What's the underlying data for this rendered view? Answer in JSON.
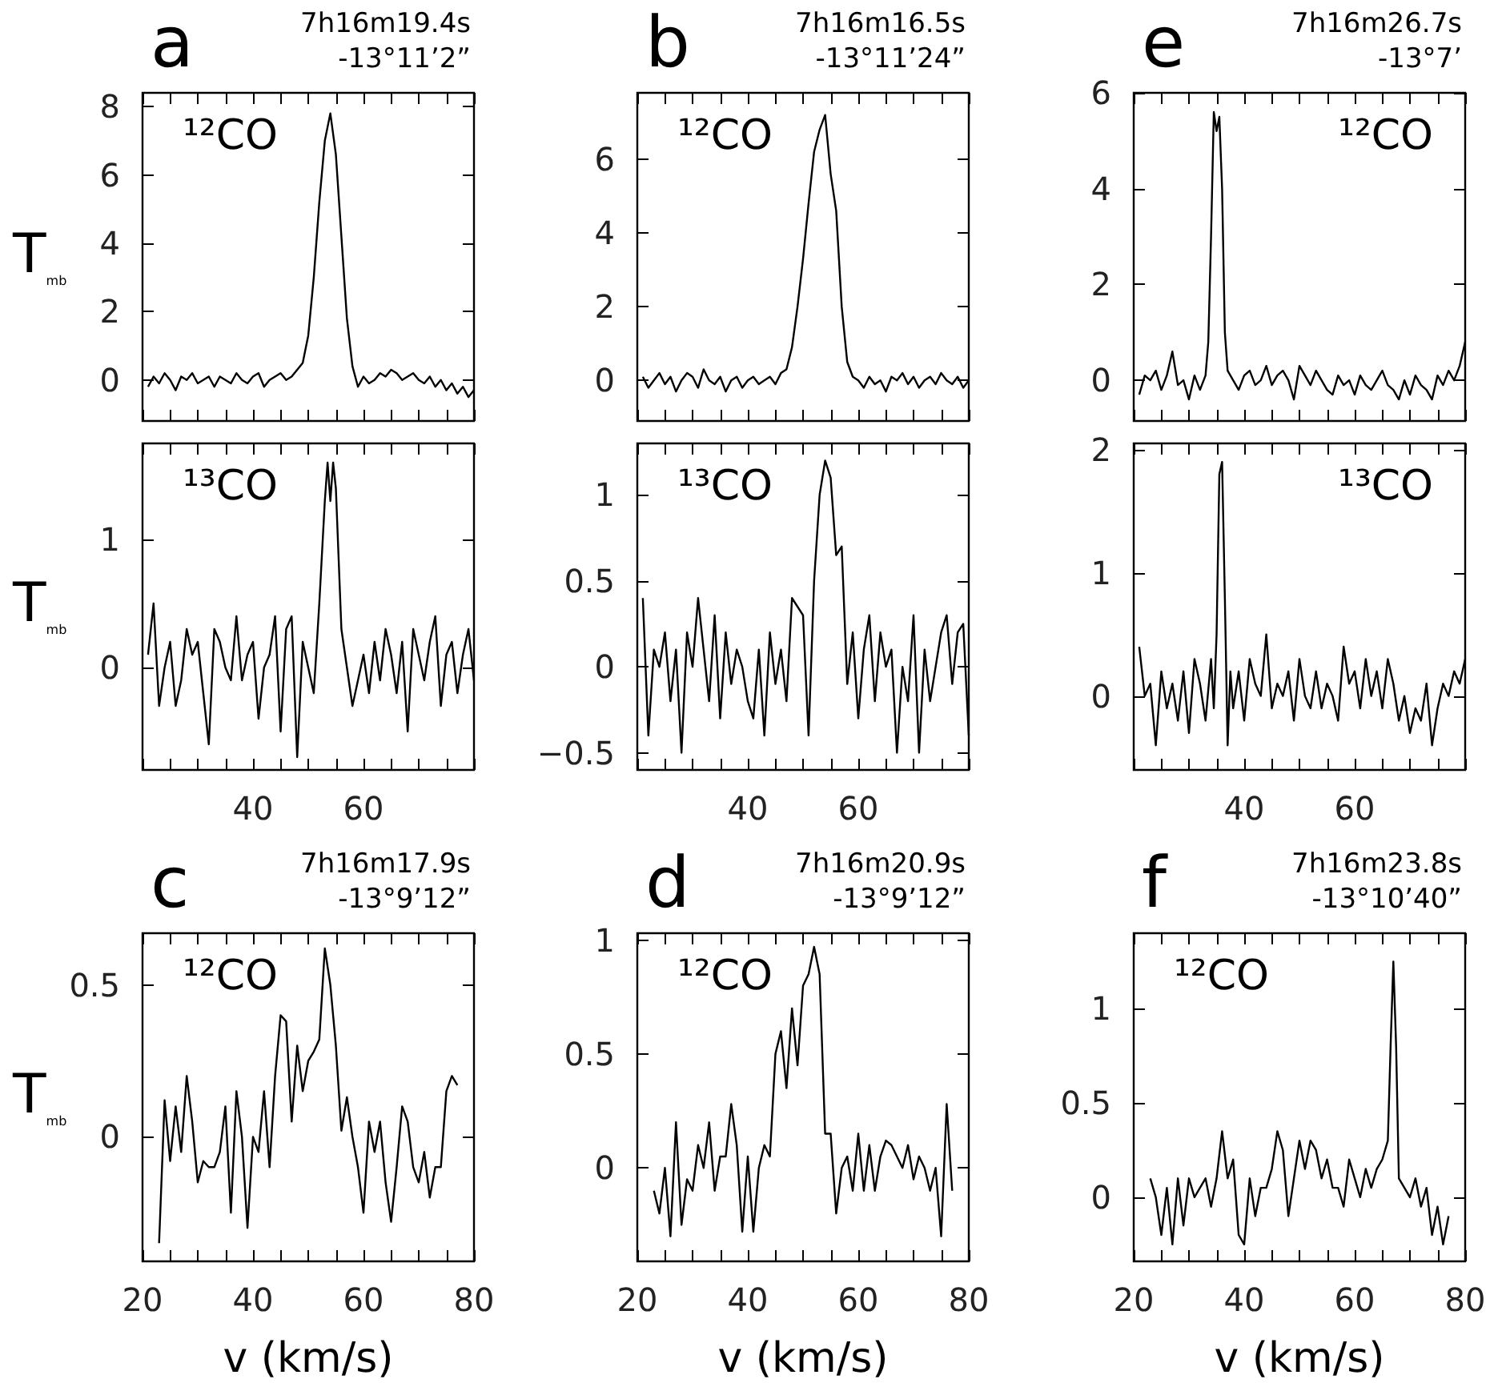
{
  "chart_data": [
    {
      "type": "line",
      "title": "a",
      "subtitle": "7h16m19.4s\n-13°11’2”",
      "ylabel": "T$_{mb}$",
      "annotations": [
        "¹²CO"
      ],
      "tick_labels": "y",
      "xlim": [
        20,
        80
      ],
      "ylim": [
        -1.2,
        8.4
      ],
      "yticks": [
        0,
        2,
        4,
        6,
        8
      ],
      "xticks": [
        {
          "value": 20,
          "label": null
        },
        {
          "value": 25,
          "label": null
        },
        {
          "value": 30,
          "label": null
        },
        {
          "value": 35,
          "label": null
        },
        {
          "value": 40,
          "label": null
        },
        {
          "value": 45,
          "label": null
        },
        {
          "value": 50,
          "label": null
        },
        {
          "value": 55,
          "label": null
        },
        {
          "value": 60,
          "label": null
        },
        {
          "value": 65,
          "label": null
        },
        {
          "value": 70,
          "label": null
        },
        {
          "value": 75,
          "label": null
        },
        {
          "value": 80,
          "label": null
        }
      ],
      "x": [
        21,
        22,
        23,
        24,
        25,
        26,
        27,
        28,
        29,
        30,
        31,
        32,
        33,
        34,
        35,
        36,
        37,
        38,
        39,
        40,
        41,
        42,
        43,
        44,
        45,
        46,
        47,
        48,
        49,
        50,
        51,
        52,
        53,
        54,
        55,
        56,
        57,
        58,
        59,
        60,
        61,
        62,
        63,
        64,
        65,
        66,
        67,
        68,
        69,
        70,
        71,
        72,
        73,
        74,
        75,
        76,
        77,
        78,
        79,
        80
      ],
      "series": [
        {
          "color": "#000000",
          "values": [
            -0.2,
            0.1,
            -0.1,
            0.2,
            0,
            -0.3,
            0.1,
            0,
            0.2,
            -0.1,
            0,
            0.1,
            -0.2,
            0.1,
            0,
            -0.1,
            0.2,
            0,
            -0.1,
            0.1,
            0.2,
            -0.2,
            0,
            0.1,
            0.2,
            0,
            0.1,
            0.3,
            0.5,
            1.3,
            3.0,
            5.2,
            7.0,
            7.8,
            6.6,
            4.2,
            1.8,
            0.4,
            -0.2,
            0.1,
            -0.1,
            0,
            0.2,
            0.1,
            0.3,
            0.2,
            0,
            0.1,
            0.2,
            0,
            -0.1,
            0.1,
            -0.2,
            0,
            -0.3,
            -0.1,
            -0.4,
            -0.2,
            -0.5,
            -0.3
          ]
        }
      ]
    },
    {
      "type": "line",
      "title": "b",
      "subtitle": "7h16m16.5s\n-13°11’24”",
      "annotations": [
        "¹²CO"
      ],
      "tick_labels": "y",
      "xlim": [
        20,
        80
      ],
      "ylim": [
        -1.1,
        7.8
      ],
      "yticks": [
        0,
        2,
        4,
        6
      ],
      "xticks": [
        {
          "value": 20,
          "label": null
        },
        {
          "value": 25,
          "label": null
        },
        {
          "value": 30,
          "label": null
        },
        {
          "value": 35,
          "label": null
        },
        {
          "value": 40,
          "label": null
        },
        {
          "value": 45,
          "label": null
        },
        {
          "value": 50,
          "label": null
        },
        {
          "value": 55,
          "label": null
        },
        {
          "value": 60,
          "label": null
        },
        {
          "value": 65,
          "label": null
        },
        {
          "value": 70,
          "label": null
        },
        {
          "value": 75,
          "label": null
        },
        {
          "value": 80,
          "label": null
        }
      ],
      "x": [
        21,
        22,
        23,
        24,
        25,
        26,
        27,
        28,
        29,
        30,
        31,
        32,
        33,
        34,
        35,
        36,
        37,
        38,
        39,
        40,
        41,
        42,
        43,
        44,
        45,
        46,
        47,
        48,
        49,
        50,
        51,
        52,
        53,
        54,
        55,
        56,
        57,
        58,
        59,
        60,
        61,
        62,
        63,
        64,
        65,
        66,
        67,
        68,
        69,
        70,
        71,
        72,
        73,
        74,
        75,
        76,
        77,
        78,
        79,
        80
      ],
      "series": [
        {
          "color": "#000000",
          "values": [
            0.1,
            -0.2,
            0,
            0.2,
            -0.1,
            0.1,
            -0.3,
            0,
            0.2,
            0.1,
            -0.2,
            0.3,
            0,
            -0.1,
            0.1,
            -0.3,
            0,
            0.1,
            -0.2,
            0,
            0.1,
            -0.1,
            0,
            0.1,
            -0.1,
            0.2,
            0.3,
            0.9,
            2.0,
            3.3,
            4.8,
            6.2,
            6.8,
            7.2,
            5.6,
            4.6,
            2.0,
            0.5,
            0.1,
            0,
            -0.2,
            0.1,
            -0.1,
            0,
            -0.3,
            0.1,
            0,
            0.2,
            -0.1,
            0.1,
            -0.2,
            0,
            0.1,
            -0.1,
            0.2,
            0,
            -0.1,
            0.1,
            -0.2,
            0
          ]
        }
      ]
    },
    {
      "type": "line",
      "title": "e",
      "subtitle": "7h16m26.7s\n-13°7’",
      "annotations": [
        "¹²CO"
      ],
      "tick_labels": "y",
      "xlim": [
        20,
        80
      ],
      "ylim": [
        -0.85,
        6
      ],
      "yticks": [
        0,
        2,
        4,
        6
      ],
      "xticks": [
        {
          "value": 20,
          "label": null
        },
        {
          "value": 25,
          "label": null
        },
        {
          "value": 30,
          "label": null
        },
        {
          "value": 35,
          "label": null
        },
        {
          "value": 40,
          "label": null
        },
        {
          "value": 45,
          "label": null
        },
        {
          "value": 50,
          "label": null
        },
        {
          "value": 55,
          "label": null
        },
        {
          "value": 60,
          "label": null
        },
        {
          "value": 65,
          "label": null
        },
        {
          "value": 70,
          "label": null
        },
        {
          "value": 75,
          "label": null
        },
        {
          "value": 80,
          "label": null
        }
      ],
      "x": [
        21,
        22,
        23,
        24,
        25,
        26,
        27,
        28,
        29,
        30,
        31,
        32,
        33,
        33.5,
        34,
        34.5,
        35,
        35.5,
        36,
        36.5,
        37,
        38,
        39,
        40,
        41,
        42,
        43,
        44,
        45,
        46,
        47,
        48,
        49,
        50,
        51,
        52,
        53,
        54,
        55,
        56,
        57,
        58,
        59,
        60,
        61,
        62,
        63,
        64,
        65,
        66,
        67,
        68,
        69,
        70,
        71,
        72,
        73,
        74,
        75,
        76,
        77,
        78,
        79,
        80
      ],
      "series": [
        {
          "color": "#000000",
          "values": [
            -0.3,
            0.1,
            0,
            0.2,
            -0.2,
            0.1,
            0.6,
            -0.1,
            0,
            -0.4,
            0.1,
            -0.2,
            0.1,
            0.8,
            3.0,
            5.6,
            5.2,
            5.5,
            4.0,
            1.0,
            0.2,
            0,
            -0.2,
            0.1,
            0.2,
            -0.1,
            0,
            0.3,
            -0.1,
            0.1,
            0.2,
            0,
            -0.4,
            0.3,
            0.1,
            -0.1,
            0.2,
            0,
            -0.2,
            -0.3,
            0.1,
            -0.1,
            0,
            -0.3,
            0.1,
            -0.1,
            -0.2,
            0,
            0.2,
            -0.1,
            -0.2,
            -0.4,
            0,
            -0.3,
            0.1,
            -0.1,
            -0.2,
            -0.4,
            0.1,
            -0.1,
            0.2,
            0,
            0.3,
            0.8
          ]
        }
      ]
    },
    {
      "type": "line",
      "ylabel": "T$_{mb}$",
      "annotations": [
        "¹³CO"
      ],
      "xlim": [
        20,
        80
      ],
      "ylim": [
        -0.8,
        1.75
      ],
      "yticks": [
        0,
        1
      ],
      "xticks": [
        {
          "value": 20,
          "label": null
        },
        {
          "value": 25,
          "label": null
        },
        {
          "value": 30,
          "label": null
        },
        {
          "value": 35,
          "label": null
        },
        40,
        {
          "value": 45,
          "label": null
        },
        {
          "value": 50,
          "label": null
        },
        {
          "value": 55,
          "label": null
        },
        60,
        {
          "value": 65,
          "label": null
        },
        {
          "value": 70,
          "label": null
        },
        {
          "value": 75,
          "label": null
        },
        {
          "value": 80,
          "label": null
        }
      ],
      "x": [
        21,
        22,
        23,
        24,
        25,
        26,
        27,
        28,
        29,
        30,
        31,
        32,
        33,
        34,
        35,
        36,
        37,
        38,
        39,
        40,
        41,
        42,
        43,
        44,
        45,
        46,
        47,
        48,
        49,
        50,
        51,
        52,
        53,
        53.5,
        54,
        54.5,
        55,
        56,
        57,
        58,
        59,
        60,
        61,
        62,
        63,
        64,
        65,
        66,
        67,
        68,
        69,
        70,
        71,
        72,
        73,
        74,
        75,
        76,
        77,
        78,
        79,
        80
      ],
      "series": [
        {
          "color": "#000000",
          "values": [
            0.1,
            0.5,
            -0.3,
            0,
            0.2,
            -0.3,
            -0.1,
            0.3,
            0.1,
            0.2,
            -0.2,
            -0.6,
            0.3,
            0.2,
            0,
            -0.1,
            0.4,
            -0.1,
            0.1,
            0.2,
            -0.4,
            0,
            0.1,
            0.4,
            -0.5,
            0.3,
            0.4,
            -0.7,
            0.2,
            0,
            -0.2,
            0.5,
            1.3,
            1.6,
            1.3,
            1.6,
            1.4,
            0.3,
            0,
            -0.3,
            -0.1,
            0.1,
            -0.2,
            0.2,
            -0.1,
            0.3,
            0.1,
            -0.2,
            0.2,
            -0.5,
            0.3,
            0.1,
            -0.1,
            0.2,
            0.4,
            -0.3,
            0.1,
            0.2,
            -0.2,
            0.1,
            0.3,
            -0.1
          ]
        }
      ]
    },
    {
      "type": "line",
      "annotations": [
        "¹³CO"
      ],
      "xlim": [
        20,
        80
      ],
      "ylim": [
        -0.6,
        1.3
      ],
      "yticks": [
        {
          "value": -0.5,
          "label": "−0.5"
        },
        0,
        0.5,
        1
      ],
      "xticks": [
        {
          "value": 20,
          "label": null
        },
        {
          "value": 25,
          "label": null
        },
        {
          "value": 30,
          "label": null
        },
        {
          "value": 35,
          "label": null
        },
        40,
        {
          "value": 45,
          "label": null
        },
        {
          "value": 50,
          "label": null
        },
        {
          "value": 55,
          "label": null
        },
        60,
        {
          "value": 65,
          "label": null
        },
        {
          "value": 70,
          "label": null
        },
        {
          "value": 75,
          "label": null
        },
        {
          "value": 80,
          "label": null
        }
      ],
      "x": [
        21,
        22,
        23,
        24,
        25,
        26,
        27,
        28,
        29,
        30,
        31,
        32,
        33,
        34,
        35,
        36,
        37,
        38,
        39,
        40,
        41,
        42,
        43,
        44,
        45,
        46,
        47,
        48,
        49,
        50,
        51,
        52,
        53,
        54,
        55,
        56,
        57,
        58,
        59,
        60,
        61,
        62,
        63,
        64,
        65,
        66,
        67,
        68,
        69,
        70,
        71,
        72,
        73,
        74,
        75,
        76,
        77,
        78,
        79,
        80
      ],
      "series": [
        {
          "color": "#000000",
          "values": [
            0.4,
            -0.4,
            0.1,
            0,
            0.2,
            -0.2,
            0.1,
            -0.5,
            0.2,
            0,
            0.4,
            0.1,
            -0.2,
            0.3,
            -0.3,
            0.2,
            -0.1,
            0.1,
            0,
            -0.2,
            -0.3,
            0.1,
            -0.4,
            0.2,
            -0.1,
            0.1,
            -0.2,
            0.4,
            0.35,
            0.3,
            -0.4,
            0.5,
            1.0,
            1.2,
            1.1,
            0.65,
            0.7,
            -0.1,
            0.2,
            -0.3,
            0.1,
            0.3,
            -0.2,
            0.2,
            0,
            0.1,
            -0.5,
            0,
            -0.2,
            0.3,
            -0.5,
            0.1,
            -0.2,
            0,
            0.2,
            0.3,
            -0.1,
            0.2,
            0.25,
            -0.4
          ]
        }
      ]
    },
    {
      "type": "line",
      "annotations": [
        "¹³CO"
      ],
      "xlim": [
        20,
        80
      ],
      "ylim": [
        -0.6,
        2.05
      ],
      "yticks": [
        0,
        1,
        2
      ],
      "xticks": [
        {
          "value": 20,
          "label": null
        },
        {
          "value": 25,
          "label": null
        },
        {
          "value": 30,
          "label": null
        },
        {
          "value": 35,
          "label": null
        },
        40,
        {
          "value": 45,
          "label": null
        },
        {
          "value": 50,
          "label": null
        },
        {
          "value": 55,
          "label": null
        },
        60,
        {
          "value": 65,
          "label": null
        },
        {
          "value": 70,
          "label": null
        },
        {
          "value": 75,
          "label": null
        },
        {
          "value": 80,
          "label": null
        }
      ],
      "x": [
        21,
        22,
        23,
        24,
        25,
        26,
        27,
        28,
        29,
        30,
        31,
        32,
        33,
        34,
        34.5,
        35,
        35.5,
        36,
        36.5,
        37,
        37.5,
        38,
        39,
        40,
        41,
        42,
        43,
        44,
        45,
        46,
        47,
        48,
        49,
        50,
        51,
        52,
        53,
        54,
        55,
        56,
        57,
        58,
        59,
        60,
        61,
        62,
        63,
        64,
        65,
        66,
        67,
        68,
        69,
        70,
        71,
        72,
        73,
        74,
        75,
        76,
        77,
        78,
        79,
        80
      ],
      "series": [
        {
          "color": "#000000",
          "values": [
            0.4,
            0,
            0.1,
            -0.4,
            0.2,
            -0.1,
            0.1,
            -0.2,
            0.2,
            -0.3,
            0.3,
            0.1,
            -0.2,
            0.3,
            -0.1,
            0.5,
            1.8,
            1.9,
            0.8,
            -0.4,
            0.2,
            -0.1,
            0.2,
            -0.2,
            0.3,
            0.1,
            0,
            0.5,
            -0.1,
            0.1,
            0,
            0.2,
            -0.2,
            0.3,
            0,
            -0.1,
            0.2,
            -0.1,
            0.1,
            0,
            -0.2,
            0.4,
            0.1,
            0.2,
            -0.1,
            0.3,
            0,
            0.2,
            -0.1,
            0.3,
            0.1,
            -0.2,
            0,
            -0.3,
            -0.1,
            -0.2,
            0.1,
            -0.4,
            -0.1,
            0.1,
            0,
            0.2,
            0.1,
            0.3
          ]
        }
      ]
    },
    {
      "type": "line",
      "title": "c",
      "subtitle": "7h16m17.9s\n-13°9’12”",
      "ylabel": "T$_{mb}$",
      "xlabel": "v (km/s)",
      "annotations": [
        "¹²CO"
      ],
      "xlim": [
        20,
        80
      ],
      "ylim": [
        -0.41,
        0.67
      ],
      "yticks": [
        0,
        0.5
      ],
      "xticks": [
        20,
        {
          "value": 25,
          "label": null
        },
        {
          "value": 30,
          "label": null
        },
        {
          "value": 35,
          "label": null
        },
        40,
        {
          "value": 45,
          "label": null
        },
        {
          "value": 50,
          "label": null
        },
        {
          "value": 55,
          "label": null
        },
        60,
        {
          "value": 65,
          "label": null
        },
        {
          "value": 70,
          "label": null
        },
        {
          "value": 75,
          "label": null
        },
        80
      ],
      "x": [
        23,
        24,
        25,
        26,
        27,
        28,
        29,
        30,
        31,
        32,
        33,
        34,
        35,
        36,
        37,
        38,
        39,
        40,
        41,
        42,
        43,
        44,
        45,
        46,
        47,
        48,
        49,
        50,
        51,
        52,
        53,
        54,
        55,
        56,
        57,
        58,
        59,
        60,
        61,
        62,
        63,
        64,
        65,
        66,
        67,
        68,
        69,
        70,
        71,
        72,
        73,
        74,
        75,
        76,
        77
      ],
      "series": [
        {
          "color": "#000000",
          "values": [
            -0.35,
            0.12,
            -0.08,
            0.1,
            -0.05,
            0.2,
            0.05,
            -0.15,
            -0.08,
            -0.1,
            -0.1,
            -0.05,
            0.1,
            -0.25,
            0.15,
            0,
            -0.3,
            0,
            -0.05,
            0.15,
            -0.1,
            0.2,
            0.4,
            0.38,
            0.05,
            0.3,
            0.15,
            0.25,
            0.28,
            0.32,
            0.62,
            0.5,
            0.3,
            0.02,
            0.13,
            0,
            -0.1,
            -0.25,
            0.05,
            -0.05,
            0.05,
            -0.15,
            -0.28,
            -0.1,
            0.1,
            0.05,
            -0.1,
            -0.15,
            -0.05,
            -0.2,
            -0.1,
            -0.1,
            0.15,
            0.2,
            0.17
          ]
        }
      ]
    },
    {
      "type": "line",
      "title": "d",
      "subtitle": "7h16m20.9s\n-13°9’12”",
      "xlabel": "v (km/s)",
      "annotations": [
        "¹²CO"
      ],
      "xlim": [
        20,
        80
      ],
      "ylim": [
        -0.41,
        1.03
      ],
      "yticks": [
        0,
        0.5,
        1
      ],
      "xticks": [
        20,
        {
          "value": 25,
          "label": null
        },
        {
          "value": 30,
          "label": null
        },
        {
          "value": 35,
          "label": null
        },
        40,
        {
          "value": 45,
          "label": null
        },
        {
          "value": 50,
          "label": null
        },
        {
          "value": 55,
          "label": null
        },
        60,
        {
          "value": 65,
          "label": null
        },
        {
          "value": 70,
          "label": null
        },
        {
          "value": 75,
          "label": null
        },
        80
      ],
      "x": [
        23,
        24,
        25,
        26,
        27,
        28,
        29,
        30,
        31,
        32,
        33,
        34,
        35,
        36,
        37,
        38,
        39,
        40,
        41,
        42,
        43,
        44,
        45,
        46,
        47,
        48,
        49,
        50,
        51,
        52,
        53,
        54,
        55,
        56,
        57,
        58,
        59,
        60,
        61,
        62,
        63,
        64,
        65,
        66,
        67,
        68,
        69,
        70,
        71,
        72,
        73,
        74,
        75,
        76,
        77
      ],
      "series": [
        {
          "color": "#000000",
          "values": [
            -0.1,
            -0.2,
            0,
            -0.3,
            0.2,
            -0.25,
            -0.05,
            -0.1,
            0.1,
            0,
            0.2,
            -0.1,
            0.05,
            0.05,
            0.28,
            0.1,
            -0.28,
            0.05,
            -0.28,
            0,
            0.1,
            0.05,
            0.5,
            0.6,
            0.35,
            0.7,
            0.45,
            0.8,
            0.85,
            0.97,
            0.85,
            0.15,
            0.15,
            -0.2,
            0,
            0.05,
            -0.1,
            0.15,
            -0.1,
            0.1,
            -0.1,
            0.05,
            0.12,
            0.1,
            0.05,
            0,
            0.1,
            -0.05,
            0.05,
            0,
            -0.1,
            0,
            -0.3,
            0.28,
            -0.1
          ]
        }
      ]
    },
    {
      "type": "line",
      "title": "f",
      "subtitle": "7h16m23.8s\n-13°10’40”",
      "xlabel": "v (km/s)",
      "annotations": [
        "¹²CO"
      ],
      "xlim": [
        20,
        80
      ],
      "ylim": [
        -0.34,
        1.4
      ],
      "yticks": [
        0,
        0.5,
        1
      ],
      "xticks": [
        20,
        {
          "value": 25,
          "label": null
        },
        {
          "value": 30,
          "label": null
        },
        {
          "value": 35,
          "label": null
        },
        40,
        {
          "value": 45,
          "label": null
        },
        {
          "value": 50,
          "label": null
        },
        {
          "value": 55,
          "label": null
        },
        60,
        {
          "value": 65,
          "label": null
        },
        {
          "value": 70,
          "label": null
        },
        {
          "value": 75,
          "label": null
        },
        80
      ],
      "x": [
        23,
        24,
        25,
        26,
        27,
        28,
        29,
        30,
        31,
        32,
        33,
        34,
        35,
        36,
        37,
        38,
        39,
        40,
        41,
        42,
        43,
        44,
        45,
        46,
        47,
        48,
        49,
        50,
        51,
        52,
        53,
        54,
        55,
        56,
        57,
        58,
        59,
        60,
        61,
        62,
        63,
        64,
        65,
        66,
        66.5,
        67,
        67.5,
        68,
        69,
        70,
        71,
        72,
        73,
        74,
        75,
        76,
        77
      ],
      "series": [
        {
          "color": "#000000",
          "values": [
            0.1,
            0,
            -0.2,
            0.05,
            -0.25,
            0.1,
            -0.15,
            0.1,
            0,
            0.05,
            0.1,
            -0.05,
            0.1,
            0.35,
            0.1,
            0.2,
            -0.2,
            -0.25,
            0.1,
            -0.1,
            0.05,
            0.05,
            0.15,
            0.35,
            0.25,
            -0.1,
            0.1,
            0.3,
            0.15,
            0.3,
            0.25,
            0.1,
            0.2,
            0.05,
            0.05,
            -0.05,
            0.2,
            0.1,
            0,
            0.15,
            0.05,
            0.15,
            0.2,
            0.3,
            0.8,
            1.25,
            0.8,
            0.1,
            0.05,
            0,
            0.1,
            -0.05,
            0.05,
            -0.2,
            -0.05,
            -0.25,
            -0.1
          ]
        }
      ]
    }
  ]
}
